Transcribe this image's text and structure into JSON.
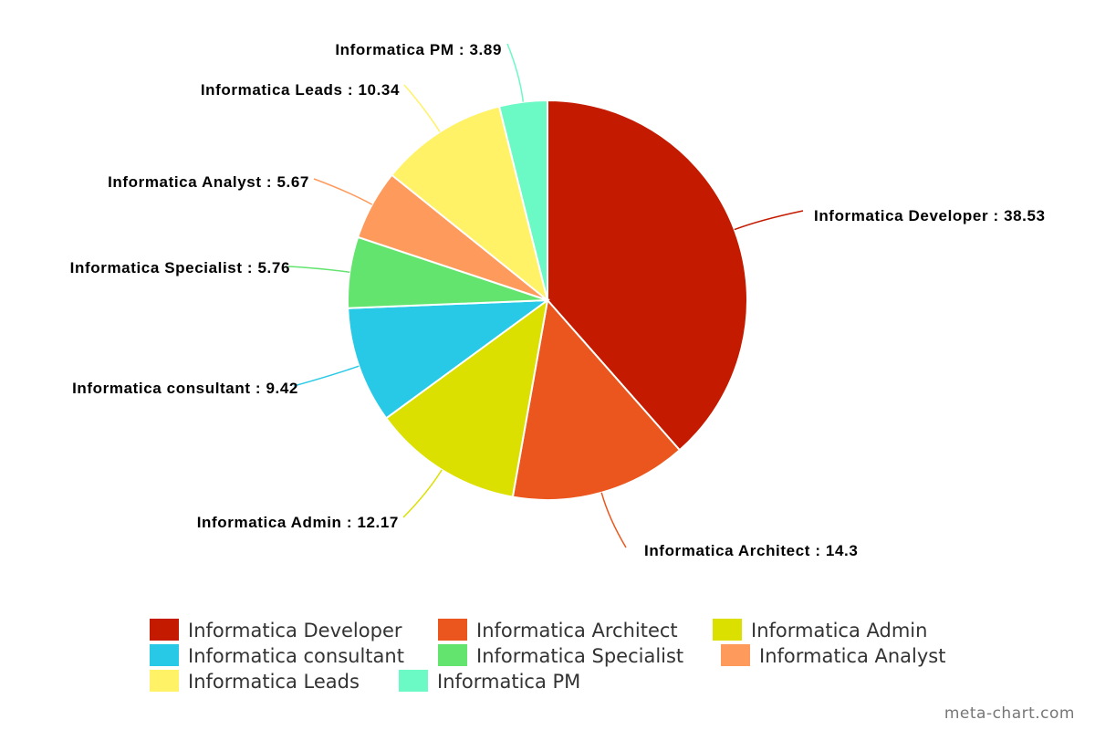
{
  "chart_data": {
    "type": "pie",
    "title": "",
    "slices": [
      {
        "label": "Informatica Developer",
        "value": 38.53,
        "color": "#c41a00",
        "display": "Informatica Developer : 38.53"
      },
      {
        "label": "Informatica Architect",
        "value": 14.3,
        "color": "#ea561d",
        "display": "Informatica Architect : 14.3"
      },
      {
        "label": "Informatica Admin",
        "value": 12.17,
        "color": "#dce000",
        "display": "Informatica Admin : 12.17"
      },
      {
        "label": "Informatica consultant",
        "value": 9.42,
        "color": "#27c9e6",
        "display": "Informatica consultant : 9.42"
      },
      {
        "label": "Informatica Specialist",
        "value": 5.76,
        "color": "#63e46f",
        "display": "Informatica Specialist : 5.76"
      },
      {
        "label": "Informatica Analyst",
        "value": 5.67,
        "color": "#fe9a5c",
        "display": "Informatica Analyst : 5.67"
      },
      {
        "label": "Informatica Leads",
        "value": 10.34,
        "color": "#fff266",
        "display": "Informatica Leads : 10.34"
      },
      {
        "label": "Informatica PM",
        "value": 3.89,
        "color": "#6bf9c6",
        "display": "Informatica PM : 3.89"
      }
    ],
    "legend": {
      "placement": "bottom"
    }
  },
  "watermark": "meta-chart.com"
}
